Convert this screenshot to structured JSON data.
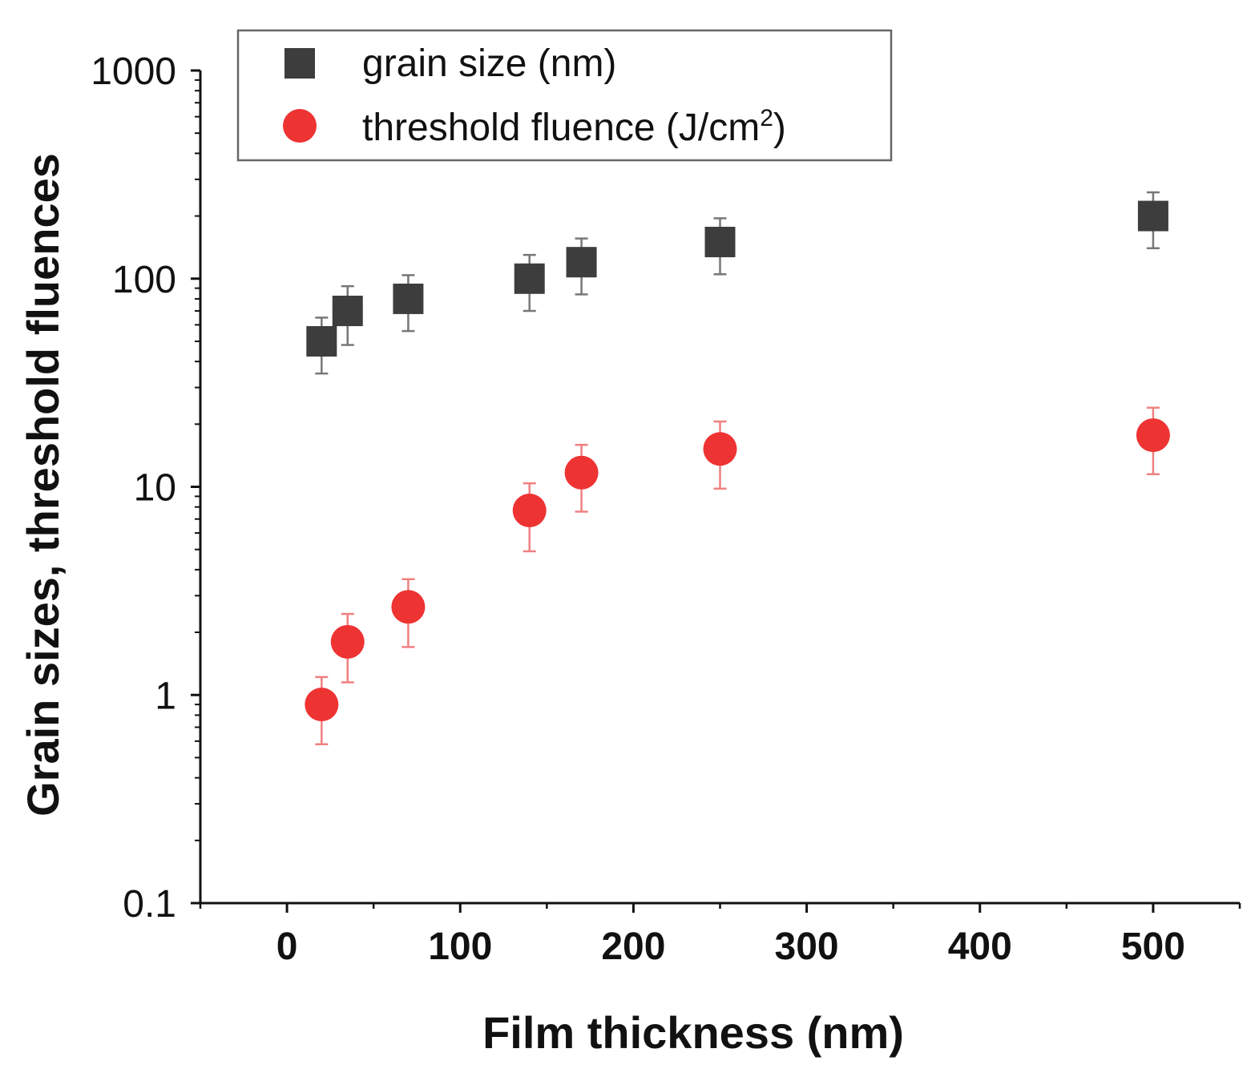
{
  "chart_data": {
    "type": "scatter",
    "title": "",
    "xlabel": "Film thickness (nm)",
    "ylabel": "Grain sizes, threshold fluences",
    "xlim": [
      -50,
      550
    ],
    "ylim": [
      0.1,
      1000
    ],
    "yscale": "log",
    "xticks": [
      0,
      100,
      200,
      300,
      400,
      500
    ],
    "xtick_labels": [
      "0",
      "100",
      "200",
      "300",
      "400",
      "500"
    ],
    "yticks": [
      0.1,
      1,
      10,
      100,
      1000
    ],
    "ytick_labels": [
      "0.1",
      "1",
      "10",
      "100",
      "1000"
    ],
    "legend_position": "top-left",
    "series": [
      {
        "name": "grain size (nm)",
        "marker": "square",
        "color": "#3d3d3d",
        "error_color": "#777777",
        "x": [
          20,
          35,
          70,
          140,
          170,
          250,
          500
        ],
        "y": [
          50,
          70,
          80,
          100,
          120,
          150,
          200
        ],
        "err_low": [
          35,
          48,
          56,
          70,
          84,
          105,
          140
        ],
        "err_high": [
          65,
          92,
          104,
          130,
          156,
          195,
          260
        ]
      },
      {
        "name": "threshold fluence (J/cm",
        "name_superscript": "2",
        "name_suffix": ")",
        "marker": "circle",
        "color": "#ee3333",
        "error_color": "#f08080",
        "x": [
          20,
          35,
          70,
          140,
          170,
          250,
          500
        ],
        "y": [
          0.9,
          1.8,
          2.65,
          7.7,
          11.7,
          15.2,
          17.7
        ],
        "err_low": [
          0.58,
          1.15,
          1.7,
          4.9,
          7.6,
          9.8,
          11.5
        ],
        "err_high": [
          1.22,
          2.45,
          3.6,
          10.4,
          15.9,
          20.6,
          24.0
        ]
      }
    ]
  }
}
